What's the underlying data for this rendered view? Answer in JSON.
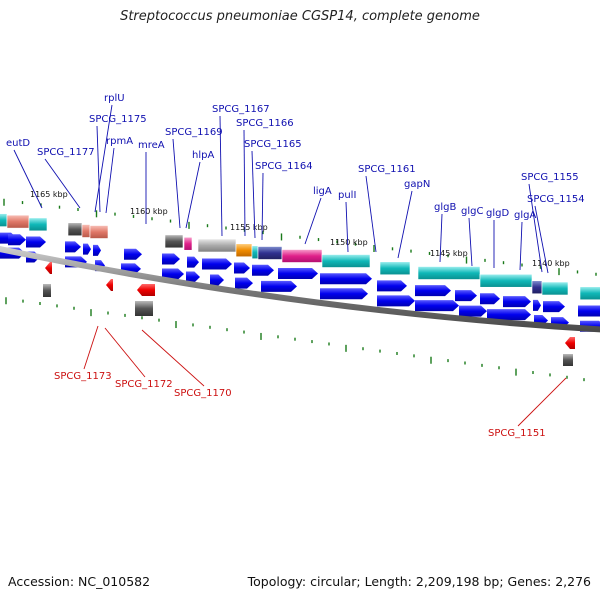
{
  "title": "Streptococcus pneumoniae CGSP14, complete genome",
  "footer": {
    "accession": "Accession: NC_010582",
    "stats": "Topology: circular; Length: 2,209,198 bp; Genes: 2,276"
  },
  "colors": {
    "forward_cds": "#0000ee",
    "reverse_cds": "#ee0000",
    "forward_label": "#1010b0",
    "reverse_label": "#cc1010",
    "ticks": "#1a7a1a",
    "backbone": "#777777",
    "cog_cyan": "#10b8b8",
    "cog_salmon": "#e07868",
    "cog_magenta": "#e0208a",
    "cog_orange": "#f08c00",
    "cog_gray": "#999999"
  },
  "kbp_labels": [
    "1165 kbp",
    "1160 kbp",
    "1155 kbp",
    "1150 kbp",
    "1145 kbp",
    "1140 kbp"
  ],
  "forward_genes": [
    "eutD",
    "SPCG_1177",
    "rplU",
    "SPCG_1175",
    "rpmA",
    "mreA",
    "SPCG_1169",
    "hlpA",
    "SPCG_1167",
    "SPCG_1166",
    "SPCG_1165",
    "SPCG_1164",
    "ligA",
    "pulI",
    "SPCG_1161",
    "gapN",
    "glgB",
    "glgC",
    "glgD",
    "glgA",
    "SPCG_1155",
    "SPCG_1154"
  ],
  "reverse_genes": [
    "SPCG_1173",
    "SPCG_1172",
    "SPCG_1170",
    "SPCG_1151"
  ]
}
